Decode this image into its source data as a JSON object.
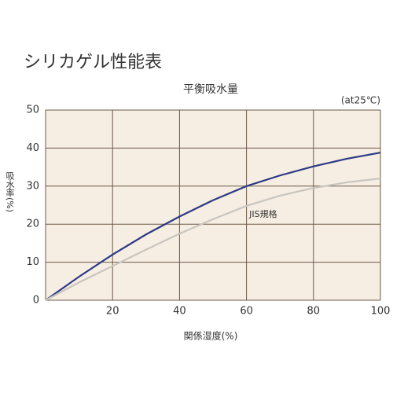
{
  "chart_data": {
    "type": "line",
    "title": "シリカゲル性能表",
    "subtitle": "平衡吸水量",
    "note": "(at25℃)",
    "xlabel": "関係湿度(%)",
    "ylabel": "吸水率(%)",
    "x": [
      0,
      10,
      20,
      30,
      40,
      50,
      60,
      70,
      80,
      90,
      100
    ],
    "series": [
      {
        "color": "#2b3a86",
        "values": [
          0,
          6.2,
          12,
          17.3,
          22,
          26.3,
          30,
          32.8,
          35.2,
          37.2,
          38.8
        ]
      },
      {
        "name": "JIS規格",
        "color": "#c8c5c0",
        "values": [
          0,
          4.7,
          9,
          13.3,
          17.5,
          21.3,
          24.8,
          27.5,
          29.5,
          31,
          32
        ]
      }
    ],
    "xlim": [
      0,
      100
    ],
    "xticks": [
      20,
      40,
      60,
      80,
      100
    ],
    "ylim": [
      0,
      50
    ],
    "yticks": [
      0,
      10,
      20,
      30,
      40,
      50
    ],
    "grid": true
  }
}
